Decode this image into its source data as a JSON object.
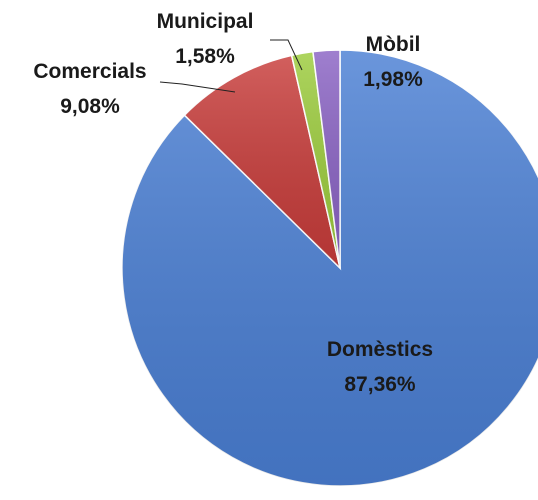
{
  "chart_data": {
    "type": "pie",
    "slices": [
      {
        "name": "Domèstics",
        "value_label": "87,36%",
        "value": 87.36,
        "color": "#4a7fd4"
      },
      {
        "name": "Comercials",
        "value_label": "9,08%",
        "value": 9.08,
        "color": "#c83c3a"
      },
      {
        "name": "Municipal",
        "value_label": "1,58%",
        "value": 1.58,
        "color": "#9ccc3c"
      },
      {
        "name": "Mòbil",
        "value_label": "1,98%",
        "value": 1.98,
        "color": "#8a63c4"
      }
    ]
  }
}
